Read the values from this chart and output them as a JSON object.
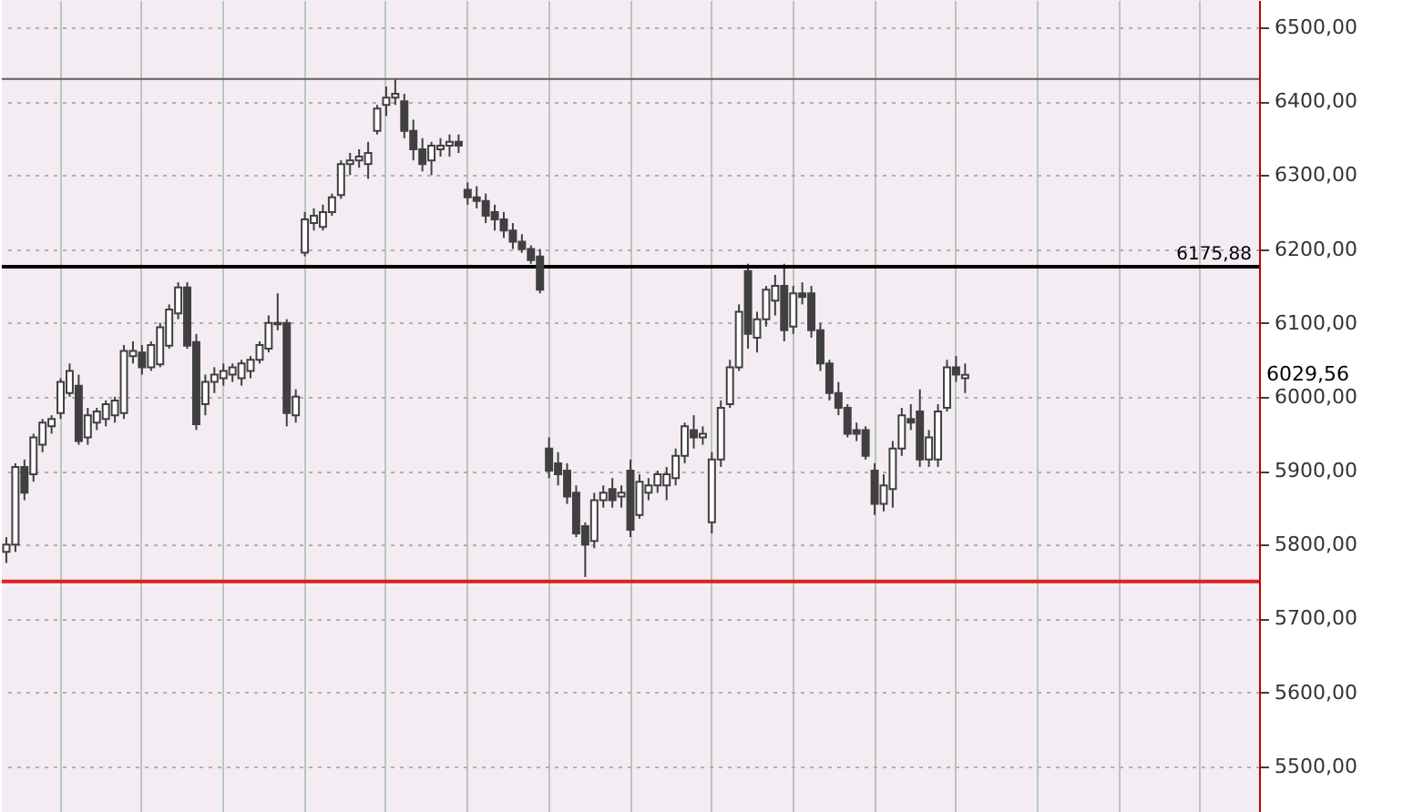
{
  "chart_data": {
    "type": "candlestick",
    "categories": [
      null,
      null,
      null,
      null,
      null,
      null,
      null,
      null,
      null,
      null,
      null,
      null,
      null,
      null,
      null,
      null,
      null,
      null,
      null,
      null,
      null,
      null,
      null,
      null,
      null,
      null,
      null,
      null,
      null,
      null,
      null,
      null,
      null,
      null,
      null,
      null,
      null,
      null,
      null,
      null,
      null,
      null,
      null,
      null,
      null,
      null,
      null,
      null,
      null,
      null,
      null,
      null,
      null,
      null,
      null,
      null,
      null,
      null,
      null,
      null,
      null,
      null,
      null,
      null,
      null,
      null,
      null,
      null,
      null,
      null,
      null,
      null,
      null,
      null,
      null,
      null,
      null,
      null,
      null,
      null,
      null,
      null,
      null,
      null,
      null,
      null,
      null,
      null,
      null,
      null,
      null,
      null,
      null,
      null,
      null,
      null,
      null,
      null,
      null,
      null,
      null,
      null,
      null,
      null,
      null,
      null,
      null,
      null,
      null,
      null,
      null,
      null,
      null,
      null,
      null,
      null,
      null,
      null,
      null,
      null,
      null,
      null,
      null,
      null,
      null,
      null,
      null,
      null,
      null,
      null,
      null,
      null,
      null,
      null,
      null,
      null,
      null,
      null,
      null
    ],
    "ohlc": [
      [
        5790,
        5810,
        5775,
        5800
      ],
      [
        5800,
        5910,
        5790,
        5905
      ],
      [
        5905,
        5915,
        5860,
        5870
      ],
      [
        5895,
        5950,
        5885,
        5945
      ],
      [
        5935,
        5970,
        5925,
        5965
      ],
      [
        5960,
        5975,
        5950,
        5970
      ],
      [
        5978,
        6025,
        5970,
        6020
      ],
      [
        6005,
        6045,
        6000,
        6035
      ],
      [
        6015,
        6030,
        5935,
        5940
      ],
      [
        5945,
        5985,
        5935,
        5975
      ],
      [
        5965,
        5985,
        5955,
        5980
      ],
      [
        5970,
        5995,
        5960,
        5990
      ],
      [
        5975,
        6000,
        5965,
        5995
      ],
      [
        5978,
        6070,
        5970,
        6062
      ],
      [
        6055,
        6075,
        6045,
        6062
      ],
      [
        6060,
        6070,
        6030,
        6040
      ],
      [
        6040,
        6075,
        6035,
        6070
      ],
      [
        6044,
        6100,
        6040,
        6094
      ],
      [
        6069,
        6125,
        6065,
        6118
      ],
      [
        6113,
        6155,
        6105,
        6148
      ],
      [
        6148,
        6155,
        6065,
        6069
      ],
      [
        6074,
        6085,
        5955,
        5963
      ],
      [
        5990,
        6030,
        5975,
        6020
      ],
      [
        6020,
        6040,
        6005,
        6030
      ],
      [
        6025,
        6045,
        6015,
        6035
      ],
      [
        6030,
        6045,
        6020,
        6040
      ],
      [
        6025,
        6050,
        6015,
        6045
      ],
      [
        6035,
        6055,
        6025,
        6050
      ],
      [
        6050,
        6075,
        6045,
        6070
      ],
      [
        6065,
        6110,
        6060,
        6100
      ],
      [
        6098,
        6140,
        6090,
        6100
      ],
      [
        6100,
        6105,
        5960,
        5978
      ],
      [
        5975,
        6010,
        5965,
        6000
      ],
      [
        6195,
        6250,
        6190,
        6240
      ],
      [
        6235,
        6255,
        6225,
        6245
      ],
      [
        6230,
        6260,
        6225,
        6250
      ],
      [
        6250,
        6275,
        6245,
        6270
      ],
      [
        6273,
        6320,
        6268,
        6315
      ],
      [
        6315,
        6330,
        6300,
        6320
      ],
      [
        6320,
        6335,
        6310,
        6325
      ],
      [
        6315,
        6345,
        6295,
        6330
      ],
      [
        6360,
        6395,
        6355,
        6390
      ],
      [
        6395,
        6420,
        6380,
        6405
      ],
      [
        6405,
        6431,
        6395,
        6410
      ],
      [
        6400,
        6410,
        6350,
        6360
      ],
      [
        6360,
        6375,
        6320,
        6335
      ],
      [
        6335,
        6350,
        6305,
        6315
      ],
      [
        6320,
        6345,
        6300,
        6340
      ],
      [
        6335,
        6350,
        6325,
        6340
      ],
      [
        6340,
        6355,
        6325,
        6345
      ],
      [
        6345,
        6355,
        6330,
        6340
      ],
      [
        6280,
        6290,
        6260,
        6270
      ],
      [
        6270,
        6285,
        6255,
        6265
      ],
      [
        6265,
        6275,
        6235,
        6245
      ],
      [
        6250,
        6260,
        6225,
        6240
      ],
      [
        6240,
        6250,
        6215,
        6225
      ],
      [
        6225,
        6235,
        6200,
        6210
      ],
      [
        6210,
        6220,
        6195,
        6200
      ],
      [
        6200,
        6205,
        6180,
        6185
      ],
      [
        6190,
        6200,
        6140,
        6145
      ],
      [
        5930,
        5945,
        5890,
        5900
      ],
      [
        5910,
        5925,
        5880,
        5895
      ],
      [
        5900,
        5910,
        5855,
        5865
      ],
      [
        5870,
        5880,
        5810,
        5815
      ],
      [
        5825,
        5830,
        5756,
        5800
      ],
      [
        5805,
        5870,
        5795,
        5860
      ],
      [
        5860,
        5880,
        5850,
        5870
      ],
      [
        5875,
        5890,
        5850,
        5860
      ],
      [
        5865,
        5880,
        5850,
        5870
      ],
      [
        5900,
        5915,
        5810,
        5820
      ],
      [
        5840,
        5895,
        5835,
        5885
      ],
      [
        5870,
        5890,
        5860,
        5880
      ],
      [
        5880,
        5900,
        5870,
        5895
      ],
      [
        5880,
        5905,
        5860,
        5895
      ],
      [
        5890,
        5930,
        5880,
        5920
      ],
      [
        5920,
        5965,
        5910,
        5960
      ],
      [
        5955,
        5975,
        5930,
        5945
      ],
      [
        5945,
        5960,
        5935,
        5950
      ],
      [
        5830,
        5925,
        5815,
        5915
      ],
      [
        5915,
        5995,
        5905,
        5985
      ],
      [
        5990,
        6050,
        5985,
        6040
      ],
      [
        6040,
        6125,
        6035,
        6115
      ],
      [
        6170,
        6180,
        6065,
        6085
      ],
      [
        6080,
        6115,
        6060,
        6105
      ],
      [
        6105,
        6150,
        6095,
        6145
      ],
      [
        6130,
        6165,
        6110,
        6150
      ],
      [
        6150,
        6180,
        6075,
        6090
      ],
      [
        6095,
        6150,
        6085,
        6140
      ],
      [
        6140,
        6155,
        6125,
        6135
      ],
      [
        6140,
        6150,
        6080,
        6090
      ],
      [
        6090,
        6100,
        6035,
        6045
      ],
      [
        6045,
        6050,
        5995,
        6005
      ],
      [
        6005,
        6020,
        5975,
        5985
      ],
      [
        5985,
        5990,
        5945,
        5950
      ],
      [
        5955,
        5965,
        5940,
        5950
      ],
      [
        5955,
        5960,
        5915,
        5920
      ],
      [
        5900,
        5910,
        5840,
        5855
      ],
      [
        5855,
        5895,
        5845,
        5880
      ],
      [
        5875,
        5940,
        5850,
        5930
      ],
      [
        5930,
        5985,
        5920,
        5975
      ],
      [
        5970,
        5990,
        5955,
        5965
      ],
      [
        5980,
        6010,
        5905,
        5915
      ],
      [
        5915,
        5955,
        5905,
        5945
      ],
      [
        5915,
        5990,
        5905,
        5980
      ],
      [
        5985,
        6050,
        5980,
        6040
      ],
      [
        6040,
        6055,
        6020,
        6030
      ],
      [
        6025,
        6045,
        6005,
        6029.56
      ],
      null,
      null,
      null,
      null,
      null,
      null,
      null,
      null,
      null,
      null,
      null,
      null,
      null,
      null,
      null,
      null,
      null,
      null,
      null,
      null,
      null,
      null,
      null,
      null,
      null,
      null,
      null,
      null,
      null,
      null,
      null,
      null
    ],
    "color": "#404040",
    "ylim": [
      5438,
      6537
    ],
    "yticks": [
      {
        "value": 5500,
        "label": "5500,00"
      },
      {
        "value": 5600,
        "label": "5600,00"
      },
      {
        "value": 5700,
        "label": "5700,00"
      },
      {
        "value": 5800,
        "label": "5800,00"
      },
      {
        "value": 5900,
        "label": "5900,00"
      },
      {
        "value": 6000,
        "label": "6000,00"
      },
      {
        "value": 6100,
        "label": "6100,00"
      },
      {
        "value": 6200,
        "label": "6200,00"
      },
      {
        "value": 6300,
        "label": "6300,00"
      },
      {
        "value": 6400,
        "label": "6400,00"
      },
      {
        "value": 6500,
        "label": "6500,00"
      }
    ],
    "ref_lines": [
      {
        "axis": "y",
        "value": 6175.88,
        "label": "6175,88",
        "color": "#000000"
      },
      {
        "axis": "y",
        "value": 6430,
        "color": "#606060"
      },
      {
        "axis": "y",
        "value": 5750,
        "color": "#e02020"
      }
    ],
    "annotations": [
      "6029,56"
    ],
    "tick_labels": "y",
    "grid": true
  }
}
